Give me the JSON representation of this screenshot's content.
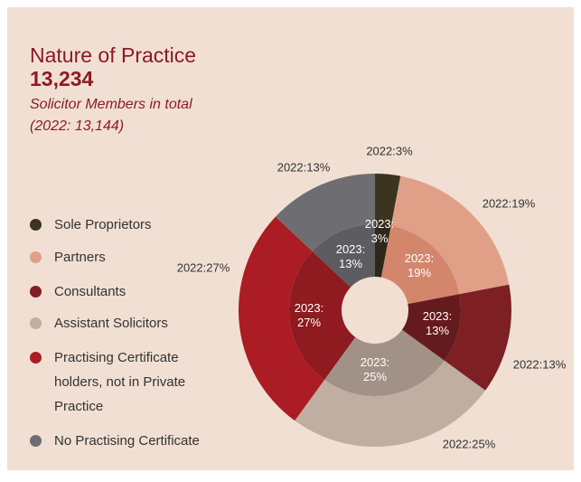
{
  "chart_data": {
    "type": "donut",
    "title": "Nature of Practice",
    "total": "13,234",
    "subtitle": [
      "Solicitor Members in total",
      "(2022: 13,144)"
    ],
    "categories": [
      "Sole Proprietors",
      "Partners",
      "Consultants",
      "Assistant Solicitors",
      "Practising Certificate holders, not in Private Practice",
      "No Practising Certificate"
    ],
    "series": [
      {
        "colors": [
          "#3a3420",
          "#e0a088",
          "#7d1f23",
          "#bfaea1",
          "#ac1c24",
          "#6e6d72"
        ],
        "values": [
          3,
          19,
          13,
          25,
          27,
          13
        ],
        "value_labels": [
          "2022:3%",
          "2022:19%",
          "2022:13%",
          "2022:25%",
          "2022:27%",
          "2022:13%"
        ]
      },
      {
        "colors": [
          "#2d2818",
          "#d3866c",
          "#651a1d",
          "#a29186",
          "#8f1a20",
          "#5d5c61"
        ],
        "values": [
          3,
          19,
          13,
          25,
          27,
          13
        ],
        "value_labels": [
          "2023: 3%",
          "2023: 19%",
          "2023: 13%",
          "2023: 25%",
          "2023: 27%",
          "2023: 13%"
        ]
      }
    ]
  }
}
